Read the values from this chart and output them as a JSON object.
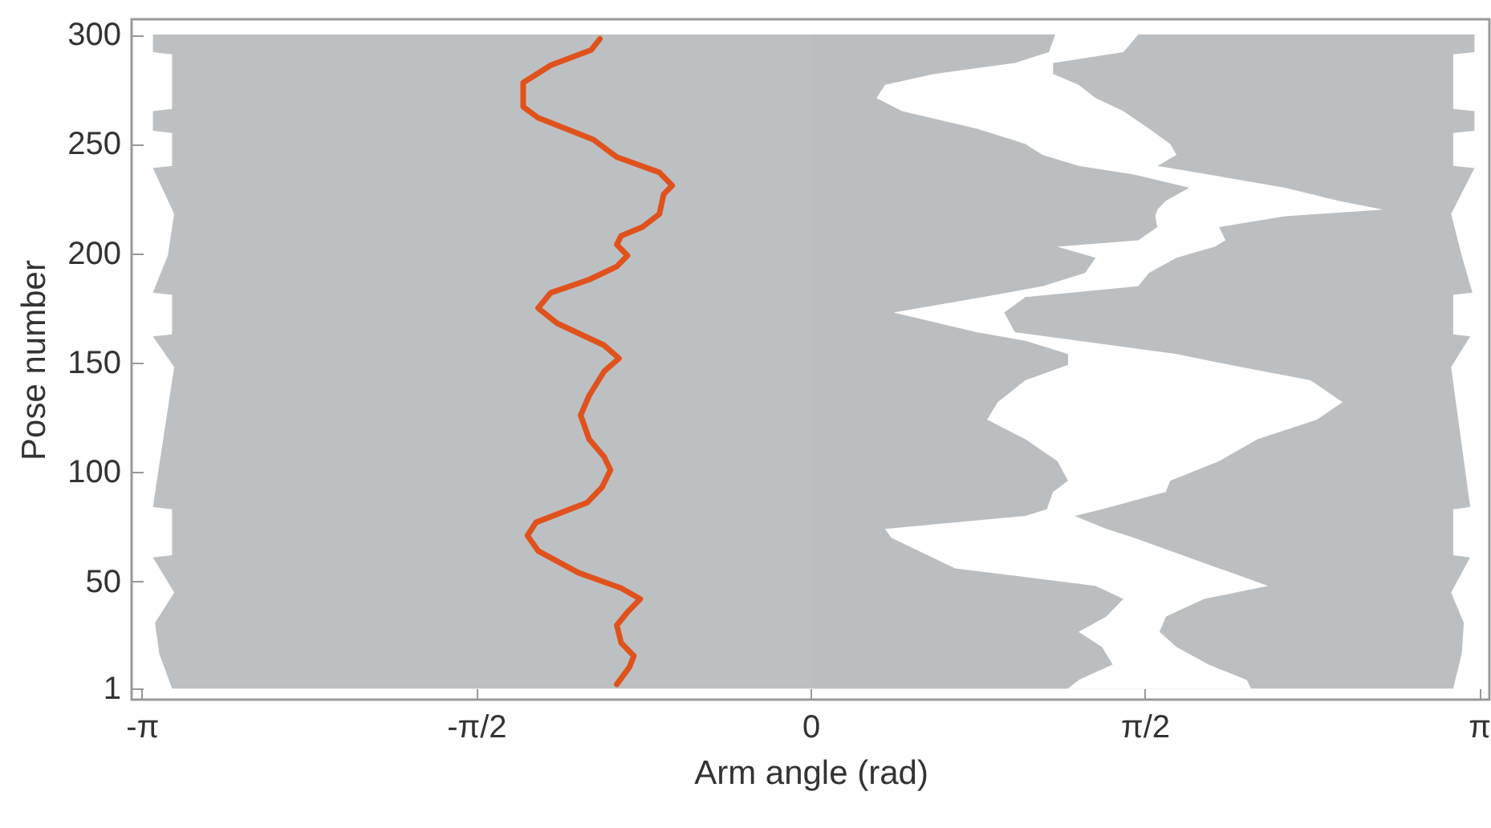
{
  "chart_data": {
    "type": "line",
    "orientation": "horizontal",
    "xlabel": "Arm angle (rad)",
    "ylabel": "Pose number",
    "xlim": [
      -3.19,
      3.19
    ],
    "xticks": [
      {
        "value": -3.1416,
        "label": "-π"
      },
      {
        "value": -1.5708,
        "label": "-π/2"
      },
      {
        "value": 0,
        "label": "0"
      },
      {
        "value": 1.5708,
        "label": "π/2"
      },
      {
        "value": 3.1416,
        "label": "π"
      }
    ],
    "ylim": [
      -4,
      307
    ],
    "yticks": [
      1,
      50,
      100,
      150,
      200,
      250,
      300
    ],
    "series": [
      {
        "type": "area",
        "color": "#bcbfc2",
        "x": [
          300,
          292,
          291,
          266,
          265,
          256,
          255,
          240,
          239,
          218,
          199,
          182,
          181,
          163,
          162,
          148,
          84,
          83,
          62,
          61,
          45,
          31,
          17,
          1
        ],
        "values": [
          3.12,
          3.12,
          3.02,
          3.02,
          3.12,
          3.12,
          3.02,
          3.02,
          3.12,
          3.01,
          3.06,
          3.11,
          3.02,
          3.02,
          3.1,
          3.01,
          3.1,
          3.02,
          3.02,
          3.1,
          3.01,
          3.07,
          3.06,
          3.02
        ]
      },
      {
        "type": "area",
        "color": "#ffffff",
        "x": [
          300,
          292,
          287,
          282,
          277,
          271,
          265,
          257,
          250,
          245,
          240,
          236,
          230,
          224,
          220,
          217,
          212,
          206,
          203,
          198,
          191,
          185,
          180,
          173,
          164,
          160,
          154,
          149,
          142,
          132,
          124,
          115,
          105,
          96,
          91,
          83,
          80,
          74,
          70,
          56,
          48,
          42,
          34,
          27,
          20,
          12,
          5,
          1
        ],
        "values": [
          1.54,
          1.47,
          1.14,
          1.14,
          1.26,
          1.34,
          1.47,
          1.59,
          1.69,
          1.72,
          1.63,
          1.87,
          2.23,
          2.48,
          2.69,
          2.23,
          1.92,
          1.95,
          1.9,
          1.72,
          1.59,
          1.54,
          1.01,
          0.91,
          0.96,
          1.26,
          1.72,
          1.97,
          2.35,
          2.5,
          2.38,
          2.1,
          1.92,
          1.69,
          1.67,
          1.37,
          1.24,
          1.39,
          1.52,
          1.92,
          2.15,
          1.85,
          1.67,
          1.64,
          1.72,
          1.87,
          2.05,
          2.07
        ]
      },
      {
        "type": "area",
        "color": "#bbbec1",
        "x": [
          300,
          292,
          287,
          282,
          277,
          271,
          265,
          257,
          250,
          245,
          240,
          236,
          230,
          224,
          220,
          217,
          212,
          206,
          203,
          198,
          191,
          185,
          180,
          173,
          164,
          160,
          154,
          149,
          142,
          132,
          124,
          115,
          105,
          96,
          91,
          83,
          80,
          74,
          70,
          56,
          48,
          42,
          34,
          27,
          20,
          12,
          5,
          1
        ],
        "values": [
          1.15,
          1.12,
          0.96,
          0.58,
          0.35,
          0.31,
          0.43,
          0.78,
          1.01,
          1.09,
          1.26,
          1.52,
          1.78,
          1.67,
          1.63,
          1.62,
          1.63,
          1.54,
          1.16,
          1.34,
          1.29,
          1.09,
          0.81,
          0.39,
          0.78,
          1.01,
          1.21,
          1.21,
          1.01,
          0.88,
          0.83,
          1.01,
          1.16,
          1.21,
          1.14,
          1.11,
          1.01,
          0.35,
          0.38,
          0.68,
          1.34,
          1.47,
          1.39,
          1.26,
          1.37,
          1.42,
          1.26,
          1.21
        ]
      },
      {
        "type": "area",
        "color": "#bdc0c3",
        "x": [
          300,
          292,
          291,
          266,
          265,
          256,
          255,
          240,
          239,
          218,
          199,
          182,
          181,
          163,
          162,
          148,
          84,
          83,
          62,
          61,
          45,
          31,
          17,
          1
        ],
        "values": [
          -3.09,
          -3.09,
          -3.0,
          -3.0,
          -3.09,
          -3.09,
          -3.0,
          -3.0,
          -3.09,
          -2.99,
          -3.02,
          -3.09,
          -3.0,
          -3.0,
          -3.09,
          -2.99,
          -3.09,
          -3.0,
          -3.0,
          -3.09,
          -2.99,
          -3.08,
          -3.06,
          -3.0
        ]
      },
      {
        "color": "#e0521c",
        "x": [
          298,
          293,
          286,
          278,
          267,
          262,
          252,
          244,
          237,
          231,
          227,
          218,
          212,
          208,
          204,
          199,
          194,
          188,
          182,
          175,
          168,
          158,
          152,
          146,
          135,
          126,
          115,
          107,
          101,
          93,
          86,
          77,
          71,
          64,
          54,
          47,
          42,
          36,
          30,
          22,
          16,
          11,
          3
        ],
        "values": [
          -0.99,
          -1.03,
          -1.22,
          -1.35,
          -1.35,
          -1.28,
          -1.02,
          -0.91,
          -0.71,
          -0.65,
          -0.69,
          -0.71,
          -0.79,
          -0.89,
          -0.91,
          -0.86,
          -0.91,
          -1.04,
          -1.22,
          -1.28,
          -1.19,
          -0.97,
          -0.9,
          -0.97,
          -1.04,
          -1.08,
          -1.04,
          -0.97,
          -0.94,
          -0.98,
          -1.05,
          -1.29,
          -1.33,
          -1.28,
          -1.09,
          -0.89,
          -0.8,
          -0.86,
          -0.91,
          -0.89,
          -0.83,
          -0.85,
          -0.91
        ]
      }
    ]
  }
}
